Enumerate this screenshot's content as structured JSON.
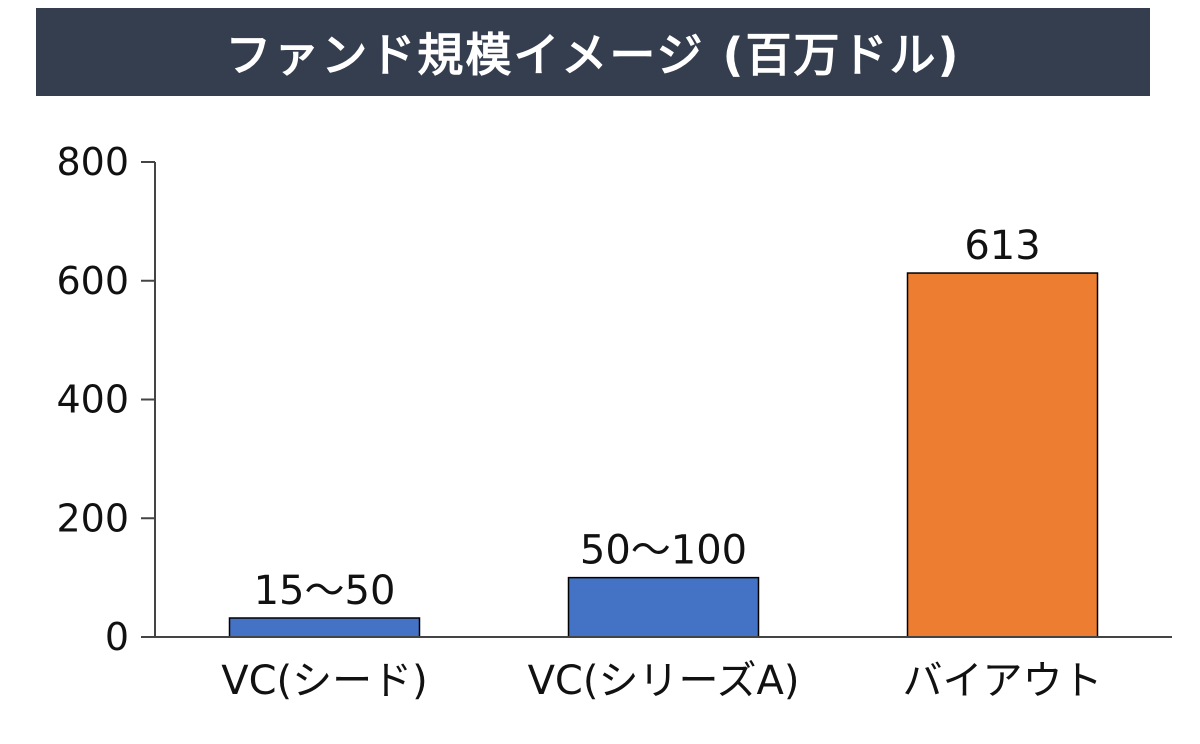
{
  "title": "ファンド規模イメージ (百万ドル)",
  "colors": {
    "title_background": "#343e4f",
    "title_text": "#ffffff",
    "vc_bar": "#4472c4",
    "buyout_bar": "#ed7d31",
    "bar_outline": "#000000"
  },
  "chart_data": {
    "type": "bar",
    "categories": [
      "VC(シード)",
      "VC(シリーズA)",
      "バイアウト"
    ],
    "values": [
      32,
      100,
      613
    ],
    "data_labels": [
      "15〜50",
      "50〜100",
      "613"
    ],
    "bar_colors": [
      "#4472c4",
      "#4472c4",
      "#ed7d31"
    ],
    "ylim": [
      0,
      800
    ],
    "yticks": [
      "0",
      "200",
      "400",
      "600",
      "800"
    ],
    "grid": false,
    "legend": "none"
  }
}
